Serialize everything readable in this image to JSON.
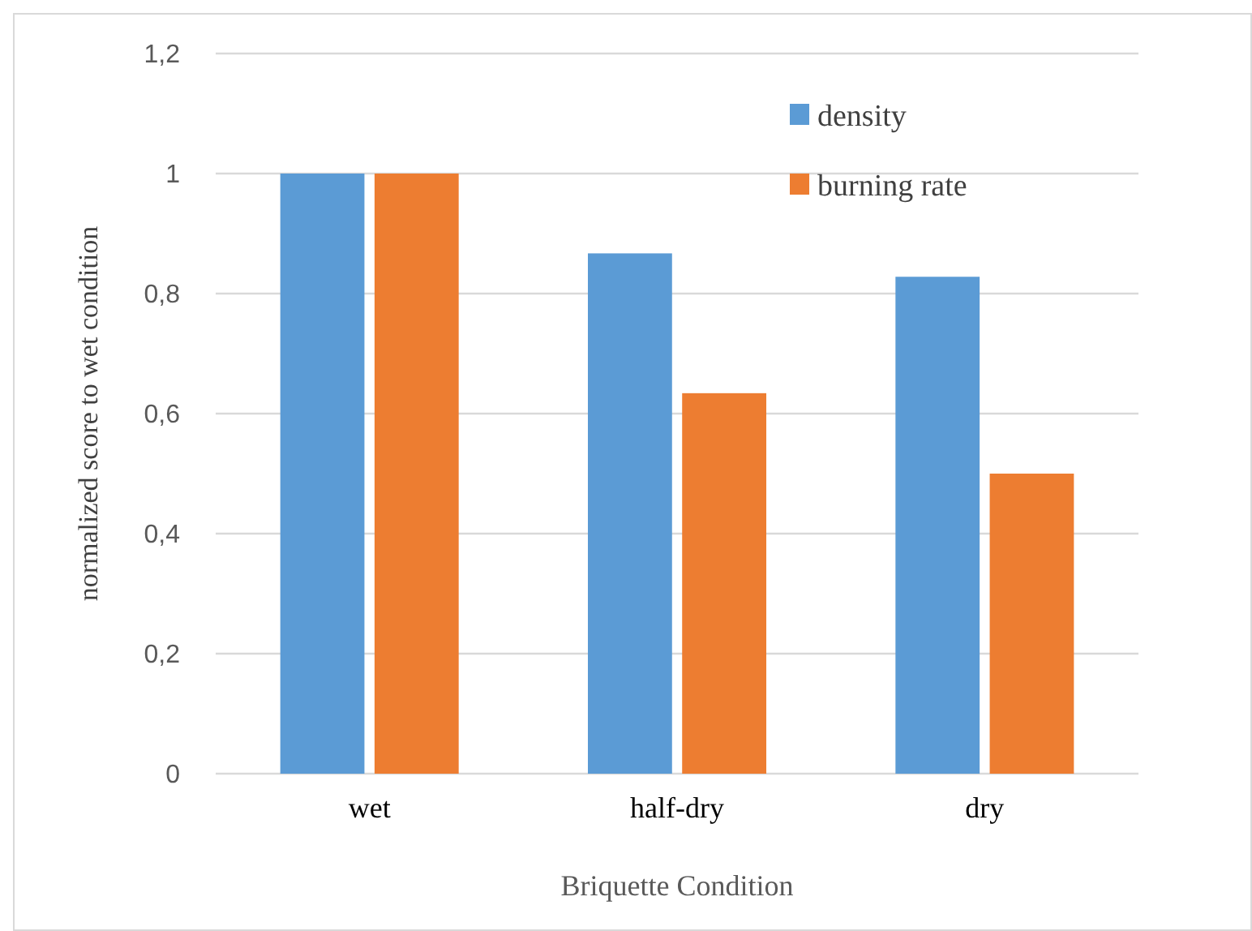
{
  "chart_data": {
    "type": "bar",
    "xlabel": "Briquette Condition",
    "ylabel": "normalized score to wet condition",
    "categories": [
      "wet",
      "half-dry",
      "dry"
    ],
    "series": [
      {
        "name": "density",
        "color": "#5b9bd5",
        "values": [
          1,
          0.867,
          0.828
        ]
      },
      {
        "name": "burning rate",
        "color": "#ed7d31",
        "values": [
          1,
          0.634,
          0.5
        ]
      }
    ],
    "ylim": [
      0,
      1.2
    ],
    "yticks": [
      0,
      {
        "value": 0.2,
        "label": "0,2"
      },
      {
        "value": 0.4,
        "label": "0,4"
      },
      {
        "value": 0.6,
        "label": "0,6"
      },
      {
        "value": 0.8,
        "label": "0,8"
      },
      1,
      {
        "value": 1.2,
        "label": "1,2"
      }
    ],
    "grid": "y",
    "legend": "top right"
  }
}
